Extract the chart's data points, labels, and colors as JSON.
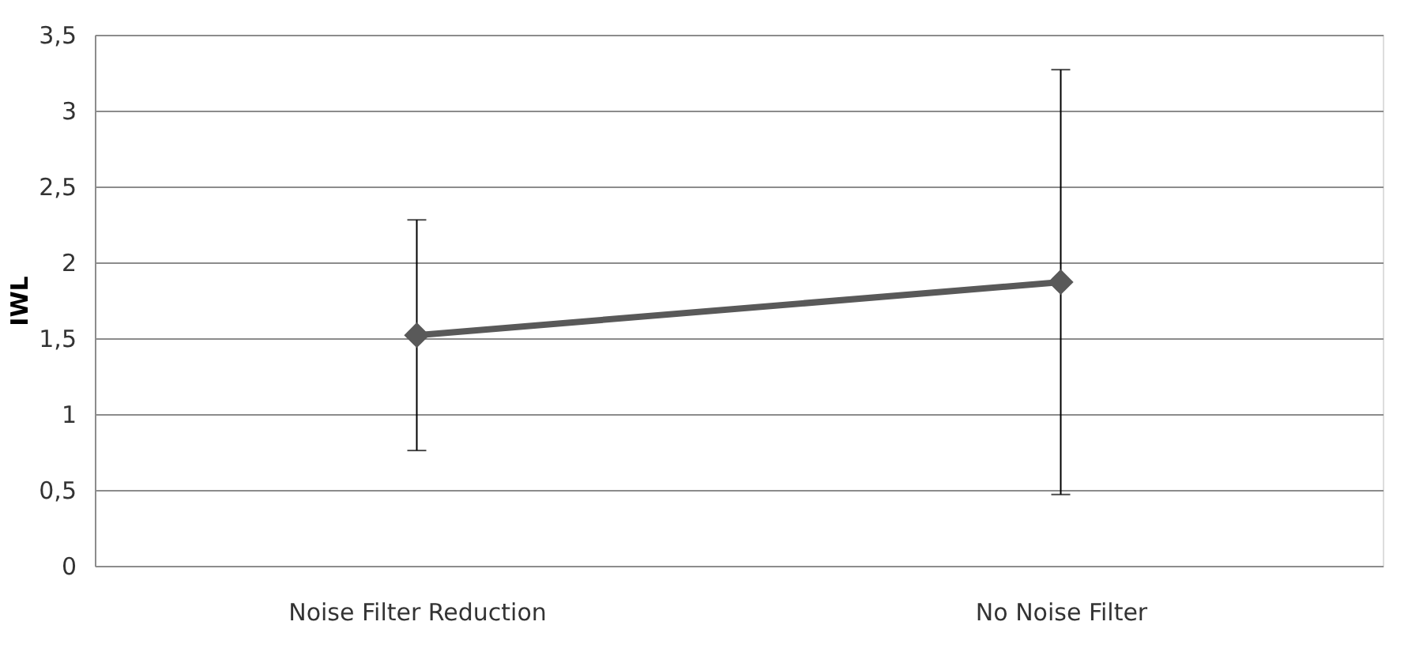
{
  "chart_data": {
    "type": "line",
    "ylabel": "IWL",
    "categories": [
      "Noise Filter Reduction",
      "No Noise Filter"
    ],
    "series": [
      {
        "color": "#595959",
        "values": [
          1.52,
          1.87
        ],
        "errors": [
          0.76,
          1.4
        ]
      }
    ],
    "ylim": [
      0,
      3.5
    ],
    "yticks": [
      0,
      {
        "value": 0.5,
        "label": "0,5"
      },
      1,
      {
        "value": 1.5,
        "label": "1,5"
      },
      2,
      {
        "value": 2.5,
        "label": "2,5"
      },
      3,
      {
        "value": 3.5,
        "label": "3,5"
      }
    ],
    "grid": "y",
    "marker": "diamond",
    "line_style": "solid"
  }
}
